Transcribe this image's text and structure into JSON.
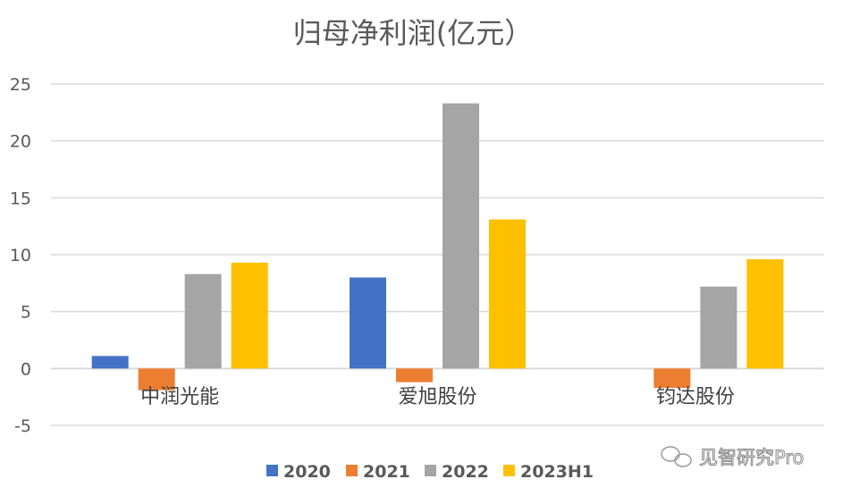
{
  "chart_data": {
    "type": "bar",
    "title": "归母净利润(亿元）",
    "categories": [
      "中润光能",
      "爱旭股份",
      "钧达股份"
    ],
    "series": [
      {
        "name": "2020",
        "color": "#4472C4",
        "values": [
          1.1,
          8.0,
          null
        ]
      },
      {
        "name": "2021",
        "color": "#ED7D31",
        "values": [
          -1.9,
          -1.2,
          -1.7
        ]
      },
      {
        "name": "2022",
        "color": "#A5A5A5",
        "values": [
          8.3,
          23.3,
          7.2
        ]
      },
      {
        "name": "2023H1",
        "color": "#FFC000",
        "values": [
          9.3,
          13.1,
          9.6
        ]
      }
    ],
    "ylim": [
      -5,
      25
    ],
    "yticks": [
      "-5",
      "0",
      "5",
      "10",
      "15",
      "20",
      "25"
    ],
    "grid": true,
    "legend": "bottom"
  },
  "watermark": "见智研究Pro"
}
